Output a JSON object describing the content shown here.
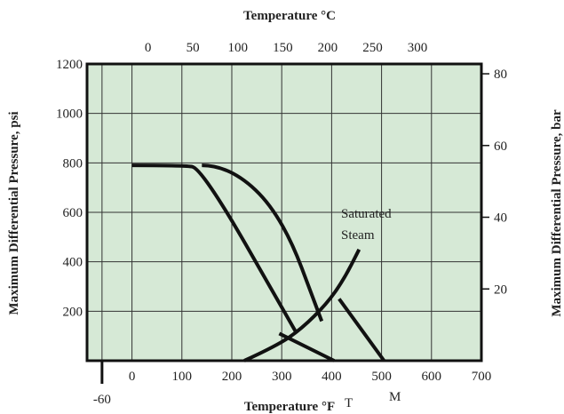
{
  "chart_data": {
    "type": "line",
    "title_top": "Temperature °C",
    "xlabel": "Temperature °F",
    "ylabel_left": "Maximum Differential Pressure, psi",
    "ylabel_right": "Maximum Differential Pressure, bar",
    "x_f_range": [
      -90,
      700
    ],
    "y_psi_range": [
      0,
      1200
    ],
    "grid": true,
    "x_f_ticks": [
      "-60",
      "0",
      "100",
      "200",
      "300",
      "400",
      "500",
      "600",
      "700"
    ],
    "x_c_ticks": [
      {
        "c": 0,
        "label": "0"
      },
      {
        "c": 50,
        "label": "50"
      },
      {
        "c": 100,
        "label": "100"
      },
      {
        "c": 150,
        "label": "150"
      },
      {
        "c": 200,
        "label": "200"
      },
      {
        "c": 250,
        "label": "250"
      },
      {
        "c": 300,
        "label": "300"
      }
    ],
    "y_psi_ticks": [
      "200",
      "400",
      "600",
      "800",
      "1000",
      "1200"
    ],
    "y_bar_ticks": [
      {
        "bar": 20,
        "label": "20"
      },
      {
        "bar": 40,
        "label": "40"
      },
      {
        "bar": 60,
        "label": "60"
      },
      {
        "bar": 80,
        "label": "80"
      }
    ],
    "series": [
      {
        "x": [
          0,
          100,
          140,
          330
        ],
        "y": [
          790,
          790,
          780,
          110
        ]
      },
      {
        "x": [
          140,
          195,
          300,
          380
        ],
        "y": [
          790,
          790,
          590,
          160
        ]
      },
      {
        "x": [
          295,
          405
        ],
        "y": [
          110,
          0
        ]
      },
      {
        "x": [
          415,
          505
        ],
        "y": [
          250,
          0
        ]
      },
      {
        "x": [
          225,
          290,
          340,
          390,
          425,
          455
        ],
        "y": [
          0,
          60,
          130,
          230,
          330,
          450
        ]
      }
    ],
    "annotations": [
      "Saturated",
      "Steam"
    ],
    "extra_marks": [
      "T",
      "M"
    ]
  }
}
